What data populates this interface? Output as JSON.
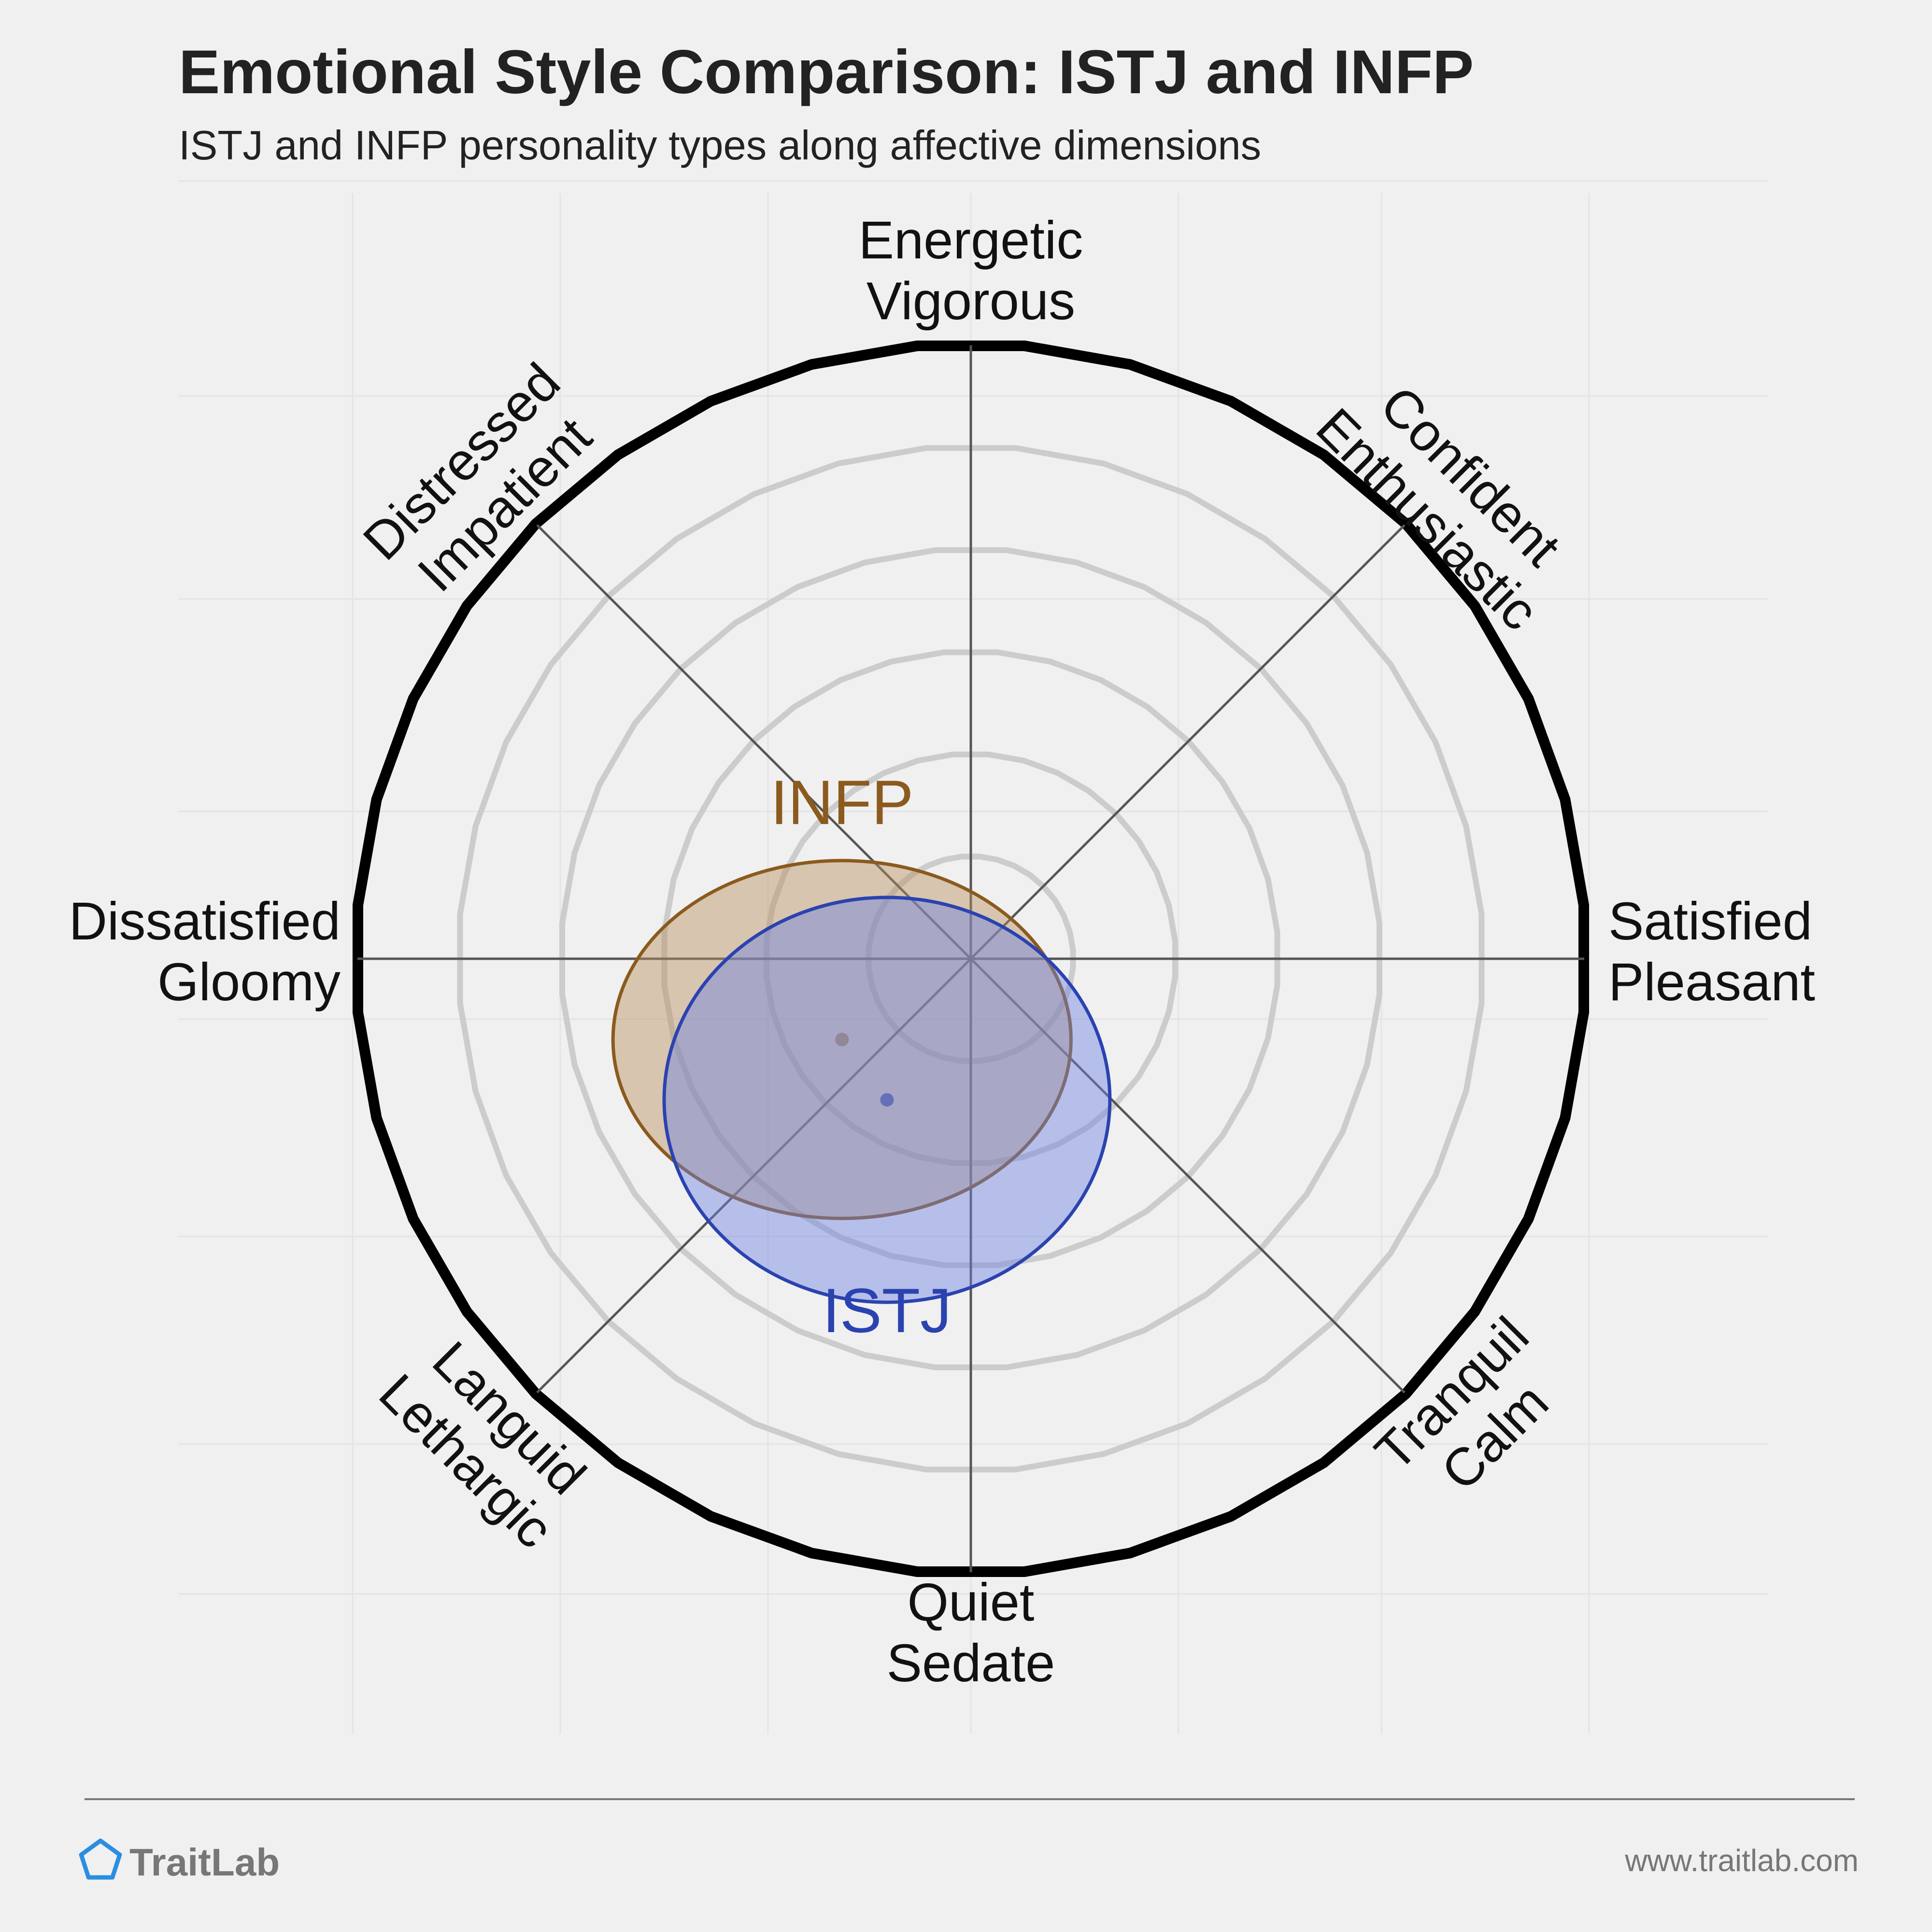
{
  "header": {
    "title": "Emotional Style Comparison: ISTJ and INFP",
    "subtitle": "ISTJ and INFP personality types along affective dimensions"
  },
  "footer": {
    "brand": "TraitLab",
    "url": "www.traitlab.com"
  },
  "colors": {
    "background": "#f0f0f0",
    "outer_ring": "#000000",
    "inner_rings": "#cccccc",
    "axes": "#555555",
    "infp": "#8b5a1e",
    "istj": "#2b43b0",
    "brand_icon": "#2b8ee0"
  },
  "chart_data": {
    "type": "circumplex",
    "ring_levels": [
      1,
      2,
      3,
      4,
      5
    ],
    "outer_radius": 6,
    "axes": [
      {
        "angle_deg": 90,
        "lines": [
          "Energetic",
          "Vigorous"
        ]
      },
      {
        "angle_deg": 45,
        "lines": [
          "Confident",
          "Enthusiastic"
        ]
      },
      {
        "angle_deg": 0,
        "lines": [
          "Satisfied",
          "Pleasant"
        ]
      },
      {
        "angle_deg": -45,
        "lines": [
          "Tranquil",
          "Calm"
        ]
      },
      {
        "angle_deg": -90,
        "lines": [
          "Quiet",
          "Sedate"
        ]
      },
      {
        "angle_deg": -135,
        "lines": [
          "Languid",
          "Lethargic"
        ]
      },
      {
        "angle_deg": 180,
        "lines": [
          "Dissatisfied",
          "Gloomy"
        ]
      },
      {
        "angle_deg": 135,
        "lines": [
          "Distressed",
          "Impatient"
        ]
      }
    ],
    "series": [
      {
        "name": "INFP",
        "center": [
          -1.26,
          -0.79
        ],
        "radii": [
          2.24,
          1.75
        ],
        "color": "#8b5a1e",
        "fill": "rgba(185,145,95,0.45)"
      },
      {
        "name": "ISTJ",
        "center": [
          -0.82,
          -1.38
        ],
        "radii": [
          2.18,
          1.98
        ],
        "color": "#2b43b0",
        "fill": "rgba(110,130,225,0.45)"
      }
    ]
  }
}
